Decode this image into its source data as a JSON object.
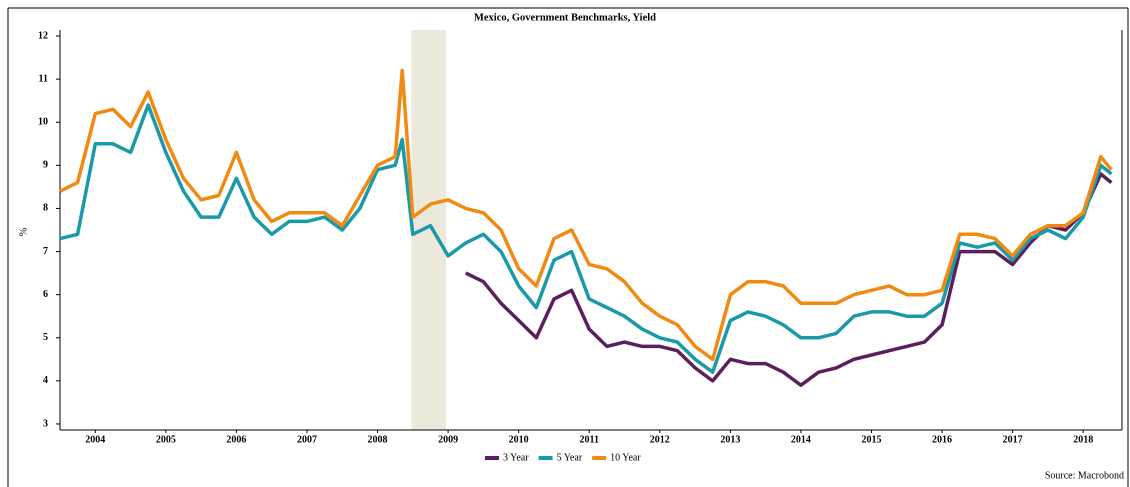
{
  "chart_data": {
    "type": "line",
    "title": "Mexico, Government Benchmarks, Yield",
    "y_label": "%",
    "source": "Source: Macrobond",
    "x": [
      2004,
      2004.25,
      2004.5,
      2004.75,
      2005,
      2005.25,
      2005.5,
      2005.75,
      2006,
      2006.25,
      2006.5,
      2006.75,
      2007,
      2007.25,
      2007.5,
      2007.75,
      2008,
      2008.25,
      2008.5,
      2008.75,
      2008.85,
      2009,
      2009.25,
      2009.5,
      2009.75,
      2010,
      2010.25,
      2010.5,
      2010.75,
      2011,
      2011.25,
      2011.5,
      2011.75,
      2012,
      2012.25,
      2012.5,
      2012.75,
      2013,
      2013.25,
      2013.5,
      2013.75,
      2014,
      2014.25,
      2014.5,
      2014.75,
      2015,
      2015.25,
      2015.5,
      2015.75,
      2016,
      2016.25,
      2016.5,
      2016.75,
      2017,
      2017.25,
      2017.5,
      2017.75,
      2018,
      2018.25,
      2018.5,
      2018.75,
      2018.9
    ],
    "series": [
      {
        "name": "3 Year",
        "color": "#5b1f5e",
        "values": [
          null,
          null,
          null,
          null,
          null,
          null,
          null,
          null,
          null,
          null,
          null,
          null,
          null,
          null,
          null,
          null,
          null,
          null,
          null,
          null,
          null,
          null,
          null,
          null,
          6.5,
          6.3,
          5.8,
          5.4,
          5.0,
          5.9,
          6.1,
          5.2,
          4.8,
          4.9,
          4.8,
          4.8,
          4.7,
          4.3,
          4.0,
          4.5,
          4.4,
          4.4,
          4.2,
          3.9,
          4.2,
          4.3,
          4.5,
          4.6,
          4.7,
          4.8,
          4.9,
          5.3,
          7.0,
          7.0,
          7.0,
          6.7,
          7.2,
          7.6,
          7.5,
          7.9,
          8.8,
          8.6
        ]
      },
      {
        "name": "5 Year",
        "color": "#1a9aa8",
        "values": [
          7.3,
          7.4,
          9.5,
          9.5,
          9.3,
          10.4,
          9.3,
          8.4,
          7.8,
          7.8,
          8.7,
          7.8,
          7.4,
          7.7,
          7.7,
          7.8,
          7.5,
          8.0,
          8.9,
          9.0,
          9.6,
          7.4,
          7.6,
          6.9,
          7.2,
          7.4,
          7.0,
          6.2,
          5.7,
          6.8,
          7.0,
          5.9,
          5.7,
          5.5,
          5.2,
          5.0,
          4.9,
          4.5,
          4.2,
          5.4,
          5.6,
          5.5,
          5.3,
          5.0,
          5.0,
          5.1,
          5.5,
          5.6,
          5.6,
          5.5,
          5.5,
          5.8,
          7.2,
          7.1,
          7.2,
          6.8,
          7.3,
          7.5,
          7.3,
          7.8,
          9.0,
          8.8
        ]
      },
      {
        "name": "10 Year",
        "color": "#f08a12",
        "values": [
          8.4,
          8.6,
          10.2,
          10.3,
          9.9,
          10.7,
          9.6,
          8.7,
          8.2,
          8.3,
          9.3,
          8.2,
          7.7,
          7.9,
          7.9,
          7.9,
          7.6,
          8.3,
          9.0,
          9.2,
          11.2,
          7.8,
          8.1,
          8.2,
          8.0,
          7.9,
          7.5,
          6.6,
          6.2,
          7.3,
          7.5,
          6.7,
          6.6,
          6.3,
          5.8,
          5.5,
          5.3,
          4.8,
          4.5,
          6.0,
          6.3,
          6.3,
          6.2,
          5.8,
          5.8,
          5.8,
          6.0,
          6.1,
          6.2,
          6.0,
          6.0,
          6.1,
          7.4,
          7.4,
          7.3,
          6.9,
          7.4,
          7.6,
          7.6,
          7.9,
          9.2,
          8.9
        ]
      }
    ],
    "shading": [
      2008.98,
      2009.47
    ],
    "shading_color": "#ece8dc",
    "xlim": [
      2004,
      2019.05
    ],
    "xticks": [
      {
        "value": 2004.5,
        "label": "2004"
      },
      {
        "value": 2005.5,
        "label": "2005"
      },
      {
        "value": 2006.5,
        "label": "2006"
      },
      {
        "value": 2007.5,
        "label": "2007"
      },
      {
        "value": 2008.5,
        "label": "2008"
      },
      {
        "value": 2009.5,
        "label": "2009"
      },
      {
        "value": 2010.5,
        "label": "2010"
      },
      {
        "value": 2011.5,
        "label": "2011"
      },
      {
        "value": 2012.5,
        "label": "2012"
      },
      {
        "value": 2013.5,
        "label": "2013"
      },
      {
        "value": 2014.5,
        "label": "2014"
      },
      {
        "value": 2015.5,
        "label": "2015"
      },
      {
        "value": 2016.5,
        "label": "2016"
      },
      {
        "value": 2017.5,
        "label": "2017"
      },
      {
        "value": 2018.5,
        "label": "2018"
      }
    ],
    "ylim": [
      2.86,
      12.14
    ],
    "yticks": [
      3,
      4,
      5,
      6,
      7,
      8,
      9,
      10,
      11,
      12
    ]
  }
}
